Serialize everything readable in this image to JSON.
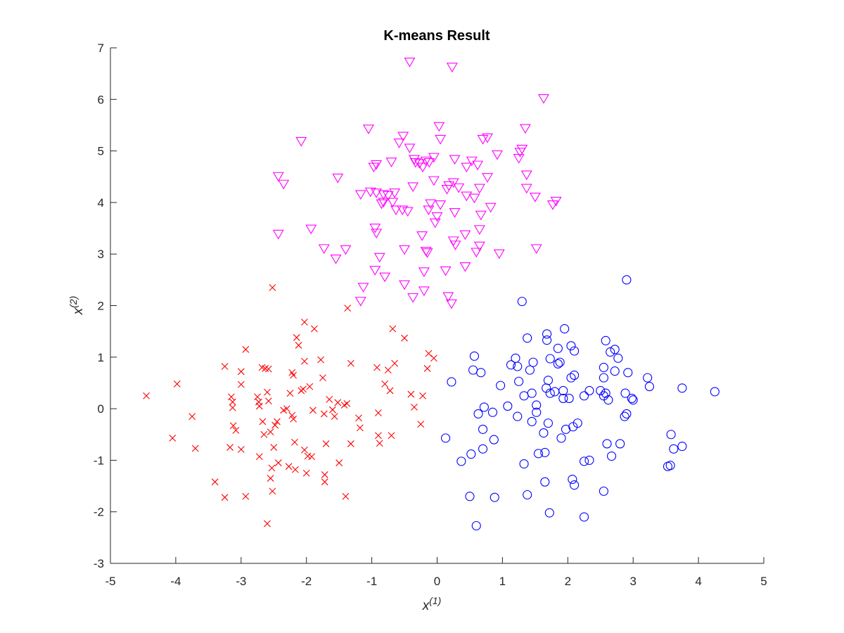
{
  "chart_data": {
    "type": "scatter",
    "title": "K-means Result",
    "xlabel": "x",
    "xlabel_sup": "(1)",
    "ylabel": "x",
    "ylabel_sup": "(2)",
    "xlim": [
      -5,
      5
    ],
    "ylim": [
      -3,
      7
    ],
    "xticks": [
      -5,
      -4,
      -3,
      -2,
      -1,
      0,
      1,
      2,
      3,
      4,
      5
    ],
    "yticks": [
      -3,
      -2,
      -1,
      0,
      1,
      2,
      3,
      4,
      5,
      6,
      7
    ],
    "grid": false,
    "series": [
      {
        "marker": "x",
        "color": "#ff0000",
        "points": [
          [
            -4.45,
            0.25
          ],
          [
            -3.98,
            0.48
          ],
          [
            -4.05,
            -0.57
          ],
          [
            -3.75,
            -0.15
          ],
          [
            -3.7,
            -0.77
          ],
          [
            -3.4,
            -1.42
          ],
          [
            -3.25,
            0.82
          ],
          [
            -3.25,
            -1.72
          ],
          [
            -3.17,
            -0.75
          ],
          [
            -3.15,
            0.23
          ],
          [
            -3.13,
            0.13
          ],
          [
            -3.13,
            0.02
          ],
          [
            -3.12,
            -0.33
          ],
          [
            -3.08,
            -0.42
          ],
          [
            -3.0,
            0.72
          ],
          [
            -3.0,
            0.47
          ],
          [
            -3.0,
            -0.79
          ],
          [
            -2.93,
            1.15
          ],
          [
            -2.93,
            -1.7
          ],
          [
            -2.75,
            0.23
          ],
          [
            -2.73,
            0.13
          ],
          [
            -2.72,
            0.05
          ],
          [
            -2.72,
            -0.93
          ],
          [
            -2.68,
            0.8
          ],
          [
            -2.67,
            -0.25
          ],
          [
            -2.65,
            -0.5
          ],
          [
            -2.63,
            0.78
          ],
          [
            -2.6,
            0.32
          ],
          [
            -2.58,
            0.77
          ],
          [
            -2.58,
            0.15
          ],
          [
            -2.55,
            -0.45
          ],
          [
            -2.53,
            -1.15
          ],
          [
            -2.55,
            -1.35
          ],
          [
            -2.52,
            -1.6
          ],
          [
            -2.5,
            -0.75
          ],
          [
            -2.48,
            -0.32
          ],
          [
            -2.45,
            -0.25
          ],
          [
            -2.43,
            -1.05
          ],
          [
            -2.52,
            2.35
          ],
          [
            -2.6,
            -2.23
          ],
          [
            -2.35,
            -0.03
          ],
          [
            -2.3,
            0.0
          ],
          [
            -2.27,
            -1.12
          ],
          [
            -2.25,
            0.3
          ],
          [
            -2.22,
            -0.13
          ],
          [
            -2.22,
            0.7
          ],
          [
            -2.2,
            -0.2
          ],
          [
            -2.2,
            0.65
          ],
          [
            -2.18,
            -0.65
          ],
          [
            -2.15,
            1.38
          ],
          [
            -2.17,
            -1.18
          ],
          [
            -2.12,
            1.23
          ],
          [
            -2.08,
            0.35
          ],
          [
            -2.05,
            0.38
          ],
          [
            -2.03,
            1.68
          ],
          [
            -2.03,
            0.92
          ],
          [
            -2.03,
            -0.8
          ],
          [
            -2.0,
            -1.25
          ],
          [
            -1.98,
            -0.92
          ],
          [
            -1.95,
            0.43
          ],
          [
            -1.92,
            -0.93
          ],
          [
            -1.9,
            -0.03
          ],
          [
            -1.88,
            1.55
          ],
          [
            -1.78,
            0.95
          ],
          [
            -1.75,
            0.6
          ],
          [
            -1.73,
            -0.1
          ],
          [
            -1.72,
            -1.28
          ],
          [
            -1.72,
            -1.42
          ],
          [
            -1.7,
            -0.68
          ],
          [
            -1.65,
            0.18
          ],
          [
            -1.6,
            -0.02
          ],
          [
            -1.57,
            -0.15
          ],
          [
            -1.52,
            0.12
          ],
          [
            -1.5,
            -1.05
          ],
          [
            -1.42,
            0.07
          ],
          [
            -1.4,
            -1.7
          ],
          [
            -1.38,
            0.1
          ],
          [
            -1.37,
            1.95
          ],
          [
            -1.32,
            0.88
          ],
          [
            -1.32,
            -0.68
          ],
          [
            -1.2,
            -0.18
          ],
          [
            -1.18,
            -0.37
          ],
          [
            -0.92,
            0.8
          ],
          [
            -0.9,
            -0.08
          ],
          [
            -0.9,
            -0.52
          ],
          [
            -0.88,
            -0.67
          ],
          [
            -0.8,
            0.48
          ],
          [
            -0.75,
            0.75
          ],
          [
            -0.72,
            0.35
          ],
          [
            -0.7,
            -0.52
          ],
          [
            -0.68,
            1.55
          ],
          [
            -0.65,
            0.88
          ],
          [
            -0.5,
            1.37
          ],
          [
            -0.4,
            0.28
          ],
          [
            -0.35,
            0.03
          ],
          [
            -0.25,
            -0.3
          ],
          [
            -0.22,
            0.25
          ],
          [
            -0.15,
            0.78
          ],
          [
            -0.13,
            1.07
          ],
          [
            -0.05,
            0.98
          ]
        ]
      },
      {
        "marker": "triangle-down",
        "color": "#ff00ff",
        "points": [
          [
            -0.42,
            6.72
          ],
          [
            0.23,
            6.62
          ],
          [
            1.63,
            6.01
          ],
          [
            0.03,
            5.47
          ],
          [
            1.35,
            5.43
          ],
          [
            -1.05,
            5.42
          ],
          [
            -0.52,
            5.28
          ],
          [
            -2.08,
            5.18
          ],
          [
            0.05,
            5.22
          ],
          [
            0.7,
            5.22
          ],
          [
            0.77,
            5.25
          ],
          [
            -0.58,
            5.15
          ],
          [
            -0.42,
            5.05
          ],
          [
            1.3,
            5.03
          ],
          [
            1.27,
            4.97
          ],
          [
            0.92,
            4.92
          ],
          [
            -0.05,
            4.87
          ],
          [
            1.25,
            4.85
          ],
          [
            0.27,
            4.83
          ],
          [
            0.53,
            4.8
          ],
          [
            -0.35,
            4.83
          ],
          [
            -0.33,
            4.77
          ],
          [
            -0.17,
            4.8
          ],
          [
            -0.12,
            4.77
          ],
          [
            -0.7,
            4.78
          ],
          [
            -0.27,
            4.75
          ],
          [
            -0.93,
            4.73
          ],
          [
            -0.97,
            4.68
          ],
          [
            0.62,
            4.72
          ],
          [
            0.45,
            4.68
          ],
          [
            -0.22,
            4.68
          ],
          [
            1.37,
            4.53
          ],
          [
            -2.43,
            4.5
          ],
          [
            -1.52,
            4.47
          ],
          [
            0.77,
            4.48
          ],
          [
            -0.05,
            4.42
          ],
          [
            0.25,
            4.38
          ],
          [
            -2.35,
            4.35
          ],
          [
            -0.37,
            4.3
          ],
          [
            0.18,
            4.32
          ],
          [
            1.37,
            4.27
          ],
          [
            0.15,
            4.25
          ],
          [
            0.33,
            4.28
          ],
          [
            0.65,
            4.27
          ],
          [
            -0.65,
            4.18
          ],
          [
            -1.02,
            4.2
          ],
          [
            -1.17,
            4.15
          ],
          [
            -0.93,
            4.18
          ],
          [
            -0.75,
            4.13
          ],
          [
            -0.82,
            4.15
          ],
          [
            0.45,
            4.12
          ],
          [
            0.57,
            4.08
          ],
          [
            1.5,
            4.1
          ],
          [
            -0.68,
            4.0
          ],
          [
            -0.82,
            4.0
          ],
          [
            -0.85,
            3.97
          ],
          [
            -0.53,
            3.85
          ],
          [
            -0.45,
            3.82
          ],
          [
            0.05,
            3.95
          ],
          [
            -0.1,
            3.97
          ],
          [
            -0.13,
            3.85
          ],
          [
            0.82,
            3.9
          ],
          [
            1.82,
            4.02
          ],
          [
            1.77,
            3.95
          ],
          [
            -0.63,
            3.85
          ],
          [
            0.27,
            3.8
          ],
          [
            0.0,
            3.72
          ],
          [
            -0.03,
            3.6
          ],
          [
            0.67,
            3.75
          ],
          [
            -0.95,
            3.5
          ],
          [
            -0.93,
            3.4
          ],
          [
            -1.93,
            3.48
          ],
          [
            -2.43,
            3.38
          ],
          [
            0.65,
            3.47
          ],
          [
            -0.23,
            3.35
          ],
          [
            0.43,
            3.37
          ],
          [
            0.25,
            3.25
          ],
          [
            0.28,
            3.17
          ],
          [
            0.65,
            3.15
          ],
          [
            -1.73,
            3.1
          ],
          [
            -1.4,
            3.08
          ],
          [
            -0.5,
            3.08
          ],
          [
            -0.17,
            3.05
          ],
          [
            -0.15,
            3.02
          ],
          [
            0.6,
            3.03
          ],
          [
            0.95,
            3.0
          ],
          [
            1.52,
            3.1
          ],
          [
            -1.55,
            2.9
          ],
          [
            -0.88,
            2.93
          ],
          [
            -0.95,
            2.68
          ],
          [
            -0.2,
            2.65
          ],
          [
            0.13,
            2.67
          ],
          [
            0.43,
            2.75
          ],
          [
            -0.8,
            2.55
          ],
          [
            -0.5,
            2.4
          ],
          [
            -1.13,
            2.35
          ],
          [
            -0.2,
            2.28
          ],
          [
            0.17,
            2.17
          ],
          [
            -0.37,
            2.15
          ],
          [
            -1.17,
            2.08
          ],
          [
            0.22,
            2.03
          ]
        ]
      },
      {
        "marker": "circle",
        "color": "#0000ff",
        "points": [
          [
            2.9,
            2.5
          ],
          [
            1.3,
            2.08
          ],
          [
            1.95,
            1.55
          ],
          [
            1.68,
            1.45
          ],
          [
            1.38,
            1.37
          ],
          [
            2.58,
            1.32
          ],
          [
            1.68,
            1.33
          ],
          [
            2.05,
            1.22
          ],
          [
            1.85,
            1.17
          ],
          [
            2.72,
            1.15
          ],
          [
            2.65,
            1.1
          ],
          [
            2.1,
            1.12
          ],
          [
            0.57,
            1.02
          ],
          [
            1.2,
            0.98
          ],
          [
            1.73,
            0.97
          ],
          [
            2.77,
            0.98
          ],
          [
            1.88,
            0.9
          ],
          [
            1.85,
            0.87
          ],
          [
            1.47,
            0.9
          ],
          [
            1.13,
            0.85
          ],
          [
            1.23,
            0.82
          ],
          [
            2.55,
            0.8
          ],
          [
            0.55,
            0.75
          ],
          [
            2.72,
            0.73
          ],
          [
            2.92,
            0.7
          ],
          [
            0.67,
            0.7
          ],
          [
            1.42,
            0.75
          ],
          [
            2.1,
            0.65
          ],
          [
            2.05,
            0.6
          ],
          [
            2.55,
            0.6
          ],
          [
            3.22,
            0.6
          ],
          [
            0.22,
            0.52
          ],
          [
            1.25,
            0.53
          ],
          [
            1.7,
            0.55
          ],
          [
            0.97,
            0.45
          ],
          [
            3.25,
            0.43
          ],
          [
            3.75,
            0.4
          ],
          [
            1.67,
            0.4
          ],
          [
            2.33,
            0.35
          ],
          [
            2.5,
            0.35
          ],
          [
            1.93,
            0.35
          ],
          [
            1.8,
            0.33
          ],
          [
            1.73,
            0.3
          ],
          [
            1.45,
            0.3
          ],
          [
            1.33,
            0.25
          ],
          [
            2.25,
            0.25
          ],
          [
            2.55,
            0.25
          ],
          [
            2.58,
            0.3
          ],
          [
            2.88,
            0.3
          ],
          [
            2.02,
            0.2
          ],
          [
            1.93,
            0.2
          ],
          [
            2.62,
            0.17
          ],
          [
            2.98,
            0.2
          ],
          [
            3.0,
            0.17
          ],
          [
            4.25,
            0.33
          ],
          [
            1.52,
            0.07
          ],
          [
            1.08,
            0.05
          ],
          [
            0.72,
            0.03
          ],
          [
            1.52,
            -0.07
          ],
          [
            0.63,
            -0.1
          ],
          [
            0.85,
            -0.07
          ],
          [
            1.23,
            -0.15
          ],
          [
            2.9,
            -0.1
          ],
          [
            2.87,
            -0.15
          ],
          [
            1.45,
            -0.25
          ],
          [
            1.7,
            -0.28
          ],
          [
            2.15,
            -0.28
          ],
          [
            2.08,
            -0.35
          ],
          [
            1.97,
            -0.4
          ],
          [
            0.7,
            -0.4
          ],
          [
            1.63,
            -0.47
          ],
          [
            0.13,
            -0.57
          ],
          [
            0.87,
            -0.6
          ],
          [
            1.9,
            -0.57
          ],
          [
            2.6,
            -0.68
          ],
          [
            2.8,
            -0.68
          ],
          [
            3.58,
            -0.5
          ],
          [
            3.62,
            -0.78
          ],
          [
            3.75,
            -0.73
          ],
          [
            0.7,
            -0.78
          ],
          [
            1.55,
            -0.87
          ],
          [
            1.65,
            -0.85
          ],
          [
            2.67,
            -0.92
          ],
          [
            0.37,
            -1.02
          ],
          [
            0.52,
            -0.88
          ],
          [
            1.33,
            -1.07
          ],
          [
            2.25,
            -1.02
          ],
          [
            2.33,
            -1.0
          ],
          [
            3.53,
            -1.12
          ],
          [
            3.57,
            -1.1
          ],
          [
            2.07,
            -1.37
          ],
          [
            1.65,
            -1.42
          ],
          [
            2.1,
            -1.48
          ],
          [
            2.55,
            -1.6
          ],
          [
            1.38,
            -1.67
          ],
          [
            0.5,
            -1.7
          ],
          [
            0.88,
            -1.72
          ],
          [
            1.72,
            -2.02
          ],
          [
            2.25,
            -2.1
          ],
          [
            0.6,
            -2.27
          ]
        ]
      }
    ]
  }
}
